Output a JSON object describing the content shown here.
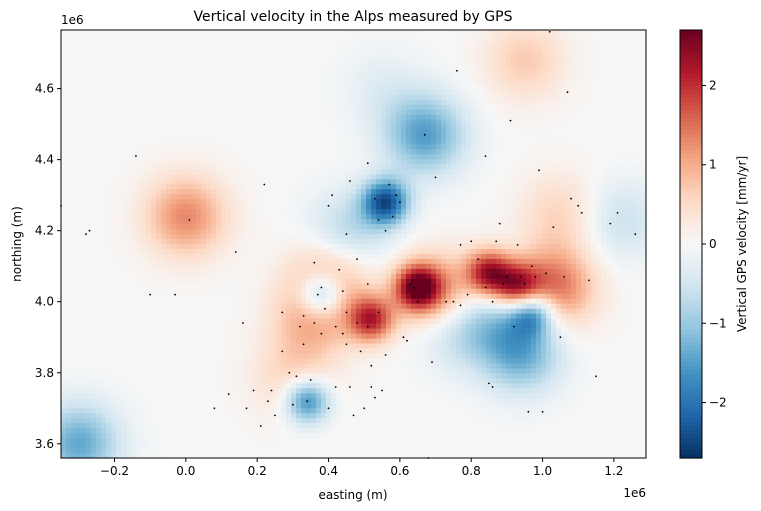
{
  "chart_data": {
    "type": "heatmap",
    "title": "Vertical velocity in the Alps measured by GPS",
    "xlabel": "easting (m)",
    "ylabel": "northing (m)",
    "x_offset_label": "1e6",
    "y_offset_label": "1e6",
    "xlim": [
      -0.35,
      1.29
    ],
    "ylim": [
      3.56,
      4.765
    ],
    "x_ticks": [
      -0.2,
      0.0,
      0.2,
      0.4,
      0.6,
      0.8,
      1.0,
      1.2
    ],
    "x_tick_labels": [
      "−0.2",
      "0.0",
      "0.2",
      "0.4",
      "0.6",
      "0.8",
      "1.0",
      "1.2"
    ],
    "y_ticks": [
      3.6,
      3.8,
      4.0,
      4.2,
      4.4,
      4.6
    ],
    "y_tick_labels": [
      "3.6",
      "3.8",
      "4.0",
      "4.2",
      "4.4",
      "4.6"
    ],
    "colorbar": {
      "label": "Vertical GPS velocity [mm/yr]",
      "colormap": "RdBu_r",
      "vmin": -2.7,
      "vmax": 2.7,
      "ticks": [
        -2,
        -1,
        0,
        1,
        2
      ],
      "tick_labels": [
        "−2",
        "−1",
        "0",
        "1",
        "2"
      ]
    },
    "field_features": [
      {
        "x": 0.0,
        "y": 4.24,
        "value": 1.3
      },
      {
        "x": 0.65,
        "y": 4.04,
        "value": 2.5
      },
      {
        "x": 0.52,
        "y": 3.95,
        "value": 2.0
      },
      {
        "x": 0.85,
        "y": 4.08,
        "value": 2.2
      },
      {
        "x": 0.93,
        "y": 4.04,
        "value": 2.0
      },
      {
        "x": 1.03,
        "y": 4.04,
        "value": 1.6
      },
      {
        "x": 0.4,
        "y": 4.05,
        "value": 1.2
      },
      {
        "x": 0.35,
        "y": 3.94,
        "value": 0.8
      },
      {
        "x": 0.72,
        "y": 4.02,
        "value": 1.3
      },
      {
        "x": 0.95,
        "y": 4.68,
        "value": 0.7
      },
      {
        "x": 1.05,
        "y": 4.25,
        "value": 0.6
      },
      {
        "x": 0.3,
        "y": 3.78,
        "value": 0.6
      },
      {
        "x": 0.56,
        "y": 4.28,
        "value": -2.3
      },
      {
        "x": 0.97,
        "y": 3.97,
        "value": -1.8
      },
      {
        "x": 0.94,
        "y": 3.86,
        "value": -1.4
      },
      {
        "x": 0.34,
        "y": 3.72,
        "value": -1.9
      },
      {
        "x": 0.38,
        "y": 4.02,
        "value": -1.8
      },
      {
        "x": 0.67,
        "y": 4.47,
        "value": -1.5
      },
      {
        "x": 0.76,
        "y": 3.93,
        "value": -0.8
      },
      {
        "x": 0.46,
        "y": 4.2,
        "value": -0.8
      },
      {
        "x": -0.3,
        "y": 3.6,
        "value": -1.4
      },
      {
        "x": 1.22,
        "y": 4.23,
        "value": -0.6
      },
      {
        "x": 0.55,
        "y": 4.6,
        "value": -0.3
      },
      {
        "x": 0.86,
        "y": 3.96,
        "value": -0.6
      }
    ],
    "stations": [
      [
        -0.35,
        4.27
      ],
      [
        -0.28,
        4.19
      ],
      [
        -0.27,
        4.2
      ],
      [
        -0.14,
        4.41
      ],
      [
        -0.1,
        4.02
      ],
      [
        -0.03,
        4.02
      ],
      [
        0.01,
        4.23
      ],
      [
        0.08,
        3.7
      ],
      [
        0.12,
        3.74
      ],
      [
        0.14,
        4.14
      ],
      [
        0.16,
        3.94
      ],
      [
        0.17,
        3.7
      ],
      [
        0.19,
        3.75
      ],
      [
        0.21,
        3.65
      ],
      [
        0.22,
        4.33
      ],
      [
        0.23,
        3.72
      ],
      [
        0.24,
        3.75
      ],
      [
        0.25,
        3.68
      ],
      [
        0.27,
        3.97
      ],
      [
        0.27,
        3.86
      ],
      [
        0.29,
        3.8
      ],
      [
        0.3,
        3.71
      ],
      [
        0.31,
        3.79
      ],
      [
        0.32,
        3.93
      ],
      [
        0.33,
        3.96
      ],
      [
        0.33,
        3.88
      ],
      [
        0.34,
        3.72
      ],
      [
        0.35,
        3.78
      ],
      [
        0.36,
        4.11
      ],
      [
        0.36,
        3.94
      ],
      [
        0.37,
        4.02
      ],
      [
        0.38,
        4.04
      ],
      [
        0.38,
        3.91
      ],
      [
        0.39,
        3.98
      ],
      [
        0.4,
        4.27
      ],
      [
        0.4,
        3.7
      ],
      [
        0.41,
        4.3
      ],
      [
        0.42,
        3.93
      ],
      [
        0.42,
        3.76
      ],
      [
        0.43,
        4.09
      ],
      [
        0.44,
        4.03
      ],
      [
        0.44,
        3.91
      ],
      [
        0.45,
        4.19
      ],
      [
        0.45,
        3.97
      ],
      [
        0.45,
        3.88
      ],
      [
        0.46,
        4.34
      ],
      [
        0.46,
        3.76
      ],
      [
        0.47,
        3.68
      ],
      [
        0.48,
        4.12
      ],
      [
        0.48,
        3.94
      ],
      [
        0.49,
        3.86
      ],
      [
        0.5,
        3.7
      ],
      [
        0.51,
        4.39
      ],
      [
        0.51,
        4.05
      ],
      [
        0.51,
        3.93
      ],
      [
        0.52,
        3.82
      ],
      [
        0.52,
        3.76
      ],
      [
        0.53,
        4.29
      ],
      [
        0.53,
        3.73
      ],
      [
        0.54,
        4.23
      ],
      [
        0.54,
        3.97
      ],
      [
        0.55,
        3.75
      ],
      [
        0.56,
        4.2
      ],
      [
        0.56,
        3.85
      ],
      [
        0.57,
        4.33
      ],
      [
        0.58,
        4.24
      ],
      [
        0.59,
        4.3
      ],
      [
        0.6,
        4.28
      ],
      [
        0.61,
        3.9
      ],
      [
        0.62,
        3.89
      ],
      [
        0.63,
        4.05
      ],
      [
        0.64,
        4.04
      ],
      [
        0.65,
        4.0
      ],
      [
        0.67,
        4.47
      ],
      [
        0.68,
        3.56
      ],
      [
        0.69,
        3.83
      ],
      [
        0.7,
        4.35
      ],
      [
        0.73,
        4.0
      ],
      [
        0.75,
        4.0
      ],
      [
        0.76,
        4.65
      ],
      [
        0.77,
        4.16
      ],
      [
        0.77,
        3.99
      ],
      [
        0.79,
        4.02
      ],
      [
        0.8,
        4.17
      ],
      [
        0.82,
        4.12
      ],
      [
        0.84,
        4.41
      ],
      [
        0.84,
        4.04
      ],
      [
        0.85,
        3.77
      ],
      [
        0.86,
        3.76
      ],
      [
        0.86,
        4.0
      ],
      [
        0.87,
        4.17
      ],
      [
        0.88,
        4.22
      ],
      [
        0.89,
        4.05
      ],
      [
        0.9,
        4.07
      ],
      [
        0.91,
        4.51
      ],
      [
        0.92,
        3.93
      ],
      [
        0.93,
        4.16
      ],
      [
        0.94,
        4.07
      ],
      [
        0.95,
        4.05
      ],
      [
        0.96,
        3.69
      ],
      [
        0.97,
        4.1
      ],
      [
        0.98,
        4.07
      ],
      [
        0.99,
        4.37
      ],
      [
        1.0,
        3.69
      ],
      [
        1.01,
        4.08
      ],
      [
        1.02,
        4.76
      ],
      [
        1.03,
        4.21
      ],
      [
        1.05,
        3.9
      ],
      [
        1.06,
        4.07
      ],
      [
        1.07,
        4.59
      ],
      [
        1.08,
        4.29
      ],
      [
        1.1,
        4.27
      ],
      [
        1.11,
        4.25
      ],
      [
        1.13,
        4.06
      ],
      [
        1.15,
        3.79
      ],
      [
        1.19,
        4.22
      ],
      [
        1.21,
        4.25
      ],
      [
        1.26,
        4.19
      ]
    ]
  }
}
